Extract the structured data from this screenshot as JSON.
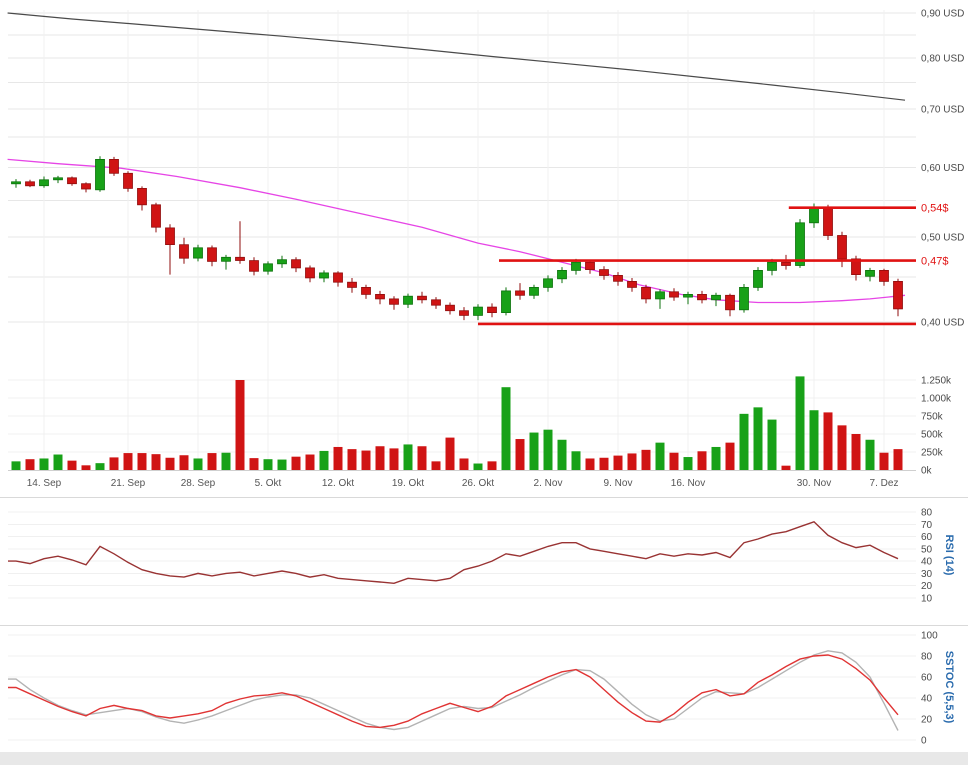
{
  "colors": {
    "up": "#18a118",
    "up_stroke": "#0c720c",
    "down": "#d01414",
    "down_stroke": "#8f0d0d",
    "reference": "#4a4a4a",
    "ma": "#e645e6",
    "level": "#e01212",
    "rsi": "#993333",
    "sstoc_red": "#e03434",
    "sstoc_gray": "#b3b3b3",
    "axis_text": "#4a4a4a",
    "date_text": "#555555",
    "indicator_label": "#2a6bad",
    "grid": "#e7e7e7",
    "grid_light": "#f0f0f0",
    "separator": "#d9d9d9",
    "bottom_bar": "#e8e8e8"
  },
  "chart_data": {
    "type": "candlestick",
    "currency": "USD",
    "y_scale": "log",
    "x_ticks": [
      [
        2,
        "14. Sep"
      ],
      [
        8,
        "21. Sep"
      ],
      [
        13,
        "28. Sep"
      ],
      [
        18,
        "5. Okt"
      ],
      [
        23,
        "12. Okt"
      ],
      [
        28,
        "19. Okt"
      ],
      [
        33,
        "26. Okt"
      ],
      [
        38,
        "2. Nov"
      ],
      [
        43,
        "9. Nov"
      ],
      [
        48,
        "16. Nov"
      ],
      [
        57,
        "30. Nov"
      ],
      [
        62,
        "7. Dez"
      ]
    ],
    "price_panel": {
      "y_axis_labels": [
        [
          "0,90 USD",
          0.9
        ],
        [
          "0,80 USD",
          0.8
        ],
        [
          "0,70 USD",
          0.7
        ],
        [
          "0,60 USD",
          0.6
        ],
        [
          "0,50 USD",
          0.5
        ],
        [
          "0,40 USD",
          0.4
        ]
      ],
      "grid": {
        "min": 0.4,
        "max": 0.9,
        "step": 0.05
      },
      "volume_axis_labels": [
        [
          "1.250k",
          1250
        ],
        [
          "1.000k",
          1000
        ],
        [
          "750k",
          750
        ],
        [
          "500k",
          500
        ],
        [
          "250k",
          250
        ],
        [
          "0k",
          0
        ]
      ],
      "levels": [
        {
          "price": 0.54,
          "label": "0,54$",
          "from": 55.2
        },
        {
          "price": 0.47,
          "label": "0,47$",
          "from": 34.5
        },
        {
          "price": 0.398,
          "label": "",
          "from": 33
        }
      ],
      "reference_line_points": [
        [
          -0.6,
          0.9
        ],
        [
          4,
          0.886
        ],
        [
          9,
          0.873
        ],
        [
          14,
          0.86
        ],
        [
          19,
          0.847
        ],
        [
          24,
          0.833
        ],
        [
          29,
          0.818
        ],
        [
          34,
          0.803
        ],
        [
          39,
          0.789
        ],
        [
          44,
          0.775
        ],
        [
          49,
          0.76
        ],
        [
          54,
          0.745
        ],
        [
          59,
          0.73
        ],
        [
          63.5,
          0.716
        ]
      ],
      "ma_line_points": [
        [
          -0.6,
          0.613
        ],
        [
          3,
          0.606
        ],
        [
          7.5,
          0.599
        ],
        [
          11.5,
          0.586
        ],
        [
          16,
          0.569
        ],
        [
          20,
          0.552
        ],
        [
          24.5,
          0.532
        ],
        [
          29,
          0.513
        ],
        [
          33,
          0.492
        ],
        [
          36,
          0.481
        ],
        [
          39,
          0.468
        ],
        [
          42,
          0.455
        ],
        [
          44.5,
          0.441
        ],
        [
          47.5,
          0.43
        ],
        [
          50,
          0.424
        ],
        [
          53,
          0.421
        ],
        [
          56,
          0.421
        ],
        [
          59,
          0.423
        ],
        [
          61,
          0.425
        ],
        [
          63.5,
          0.429
        ]
      ],
      "candles_ohlcv": [
        [
          0.575,
          0.582,
          0.569,
          0.578,
          120
        ],
        [
          0.578,
          0.581,
          0.57,
          0.572,
          150
        ],
        [
          0.572,
          0.586,
          0.569,
          0.581,
          160
        ],
        [
          0.581,
          0.587,
          0.576,
          0.584,
          215
        ],
        [
          0.584,
          0.586,
          0.572,
          0.575,
          130
        ],
        [
          0.575,
          0.577,
          0.562,
          0.567,
          65
        ],
        [
          0.566,
          0.618,
          0.563,
          0.613,
          95
        ],
        [
          0.613,
          0.617,
          0.587,
          0.591,
          175
        ],
        [
          0.591,
          0.594,
          0.563,
          0.568,
          235
        ],
        [
          0.568,
          0.571,
          0.536,
          0.544,
          235
        ],
        [
          0.544,
          0.547,
          0.506,
          0.513,
          220
        ],
        [
          0.512,
          0.517,
          0.453,
          0.49,
          170
        ],
        [
          0.49,
          0.499,
          0.466,
          0.473,
          205
        ],
        [
          0.473,
          0.49,
          0.469,
          0.486,
          160
        ],
        [
          0.486,
          0.489,
          0.463,
          0.469,
          235
        ],
        [
          0.469,
          0.477,
          0.459,
          0.474,
          240
        ],
        [
          0.474,
          0.521,
          0.466,
          0.47,
          1250
        ],
        [
          0.47,
          0.474,
          0.452,
          0.457,
          165
        ],
        [
          0.457,
          0.469,
          0.453,
          0.466,
          150
        ],
        [
          0.466,
          0.476,
          0.461,
          0.471,
          145
        ],
        [
          0.471,
          0.474,
          0.456,
          0.461,
          185
        ],
        [
          0.461,
          0.464,
          0.444,
          0.449,
          215
        ],
        [
          0.449,
          0.458,
          0.444,
          0.455,
          265
        ],
        [
          0.455,
          0.457,
          0.439,
          0.444,
          320
        ],
        [
          0.444,
          0.449,
          0.432,
          0.438,
          290
        ],
        [
          0.438,
          0.441,
          0.425,
          0.43,
          270
        ],
        [
          0.43,
          0.434,
          0.419,
          0.425,
          330
        ],
        [
          0.425,
          0.428,
          0.413,
          0.419,
          300
        ],
        [
          0.419,
          0.431,
          0.415,
          0.428,
          355
        ],
        [
          0.428,
          0.433,
          0.42,
          0.424,
          330
        ],
        [
          0.424,
          0.427,
          0.414,
          0.418,
          120
        ],
        [
          0.418,
          0.421,
          0.408,
          0.412,
          450
        ],
        [
          0.412,
          0.416,
          0.402,
          0.407,
          160
        ],
        [
          0.407,
          0.419,
          0.402,
          0.416,
          90
        ],
        [
          0.416,
          0.42,
          0.405,
          0.41,
          120
        ],
        [
          0.41,
          0.438,
          0.407,
          0.434,
          1150
        ],
        [
          0.434,
          0.443,
          0.424,
          0.429,
          430
        ],
        [
          0.429,
          0.441,
          0.425,
          0.438,
          520
        ],
        [
          0.438,
          0.452,
          0.433,
          0.448,
          560
        ],
        [
          0.448,
          0.462,
          0.443,
          0.458,
          420
        ],
        [
          0.458,
          0.472,
          0.453,
          0.468,
          260
        ],
        [
          0.468,
          0.471,
          0.454,
          0.459,
          160
        ],
        [
          0.459,
          0.463,
          0.447,
          0.452,
          170
        ],
        [
          0.452,
          0.456,
          0.44,
          0.445,
          200
        ],
        [
          0.445,
          0.449,
          0.433,
          0.438,
          230
        ],
        [
          0.438,
          0.441,
          0.42,
          0.425,
          280
        ],
        [
          0.425,
          0.436,
          0.414,
          0.433,
          380
        ],
        [
          0.433,
          0.437,
          0.423,
          0.427,
          240
        ],
        [
          0.427,
          0.433,
          0.419,
          0.43,
          180
        ],
        [
          0.43,
          0.434,
          0.42,
          0.424,
          260
        ],
        [
          0.424,
          0.432,
          0.417,
          0.429,
          320
        ],
        [
          0.429,
          0.431,
          0.406,
          0.413,
          380
        ],
        [
          0.413,
          0.442,
          0.41,
          0.438,
          780
        ],
        [
          0.438,
          0.462,
          0.434,
          0.458,
          870
        ],
        [
          0.458,
          0.472,
          0.452,
          0.468,
          700
        ],
        [
          0.468,
          0.477,
          0.459,
          0.464,
          60
        ],
        [
          0.464,
          0.524,
          0.461,
          0.519,
          1300
        ],
        [
          0.519,
          0.546,
          0.512,
          0.541,
          830
        ],
        [
          0.541,
          0.544,
          0.496,
          0.502,
          800
        ],
        [
          0.502,
          0.507,
          0.462,
          0.472,
          620
        ],
        [
          0.472,
          0.476,
          0.446,
          0.453,
          500
        ],
        [
          0.451,
          0.461,
          0.445,
          0.458,
          420
        ],
        [
          0.458,
          0.46,
          0.44,
          0.445,
          240
        ],
        [
          0.445,
          0.448,
          0.406,
          0.414,
          290
        ]
      ]
    },
    "rsi_panel": {
      "label": "RSI (14)",
      "axis_labels": [
        80,
        70,
        60,
        50,
        40,
        30,
        20,
        10
      ],
      "values": [
        40,
        38,
        42,
        44,
        41,
        37,
        52,
        46,
        39,
        33,
        30,
        28,
        27,
        30,
        28,
        30,
        31,
        28,
        30,
        32,
        30,
        27,
        29,
        26,
        25,
        24,
        23,
        22,
        26,
        25,
        24,
        26,
        33,
        36,
        40,
        46,
        44,
        48,
        52,
        55,
        55,
        50,
        48,
        46,
        44,
        42,
        46,
        44,
        46,
        45,
        47,
        43,
        55,
        58,
        62,
        64,
        68,
        72,
        61,
        55,
        51,
        53,
        47,
        42
      ]
    },
    "sstoc_panel": {
      "label": "SSTOC (5,5,3)",
      "axis_labels": [
        100,
        80,
        60,
        40,
        20,
        0
      ],
      "series_red": [
        50,
        44,
        38,
        32,
        27,
        23,
        30,
        33,
        30,
        28,
        23,
        21,
        23,
        25,
        28,
        35,
        39,
        42,
        43,
        45,
        42,
        36,
        30,
        24,
        18,
        13,
        12,
        14,
        18,
        25,
        30,
        35,
        31,
        27,
        32,
        42,
        48,
        54,
        60,
        65,
        67,
        60,
        48,
        36,
        26,
        18,
        17,
        25,
        36,
        45,
        48,
        42,
        44,
        55,
        62,
        70,
        77,
        80,
        81,
        77,
        68,
        57,
        40,
        24
      ],
      "series_gray": [
        58,
        48,
        40,
        33,
        28,
        24,
        26,
        28,
        30,
        27,
        22,
        18,
        16,
        19,
        23,
        28,
        33,
        38,
        41,
        43,
        43,
        40,
        34,
        28,
        22,
        16,
        12,
        10,
        12,
        18,
        24,
        30,
        32,
        30,
        31,
        37,
        43,
        50,
        56,
        62,
        67,
        66,
        58,
        46,
        34,
        24,
        18,
        20,
        30,
        40,
        46,
        45,
        44,
        50,
        58,
        66,
        74,
        81,
        85,
        83,
        74,
        60,
        35,
        9
      ]
    }
  }
}
